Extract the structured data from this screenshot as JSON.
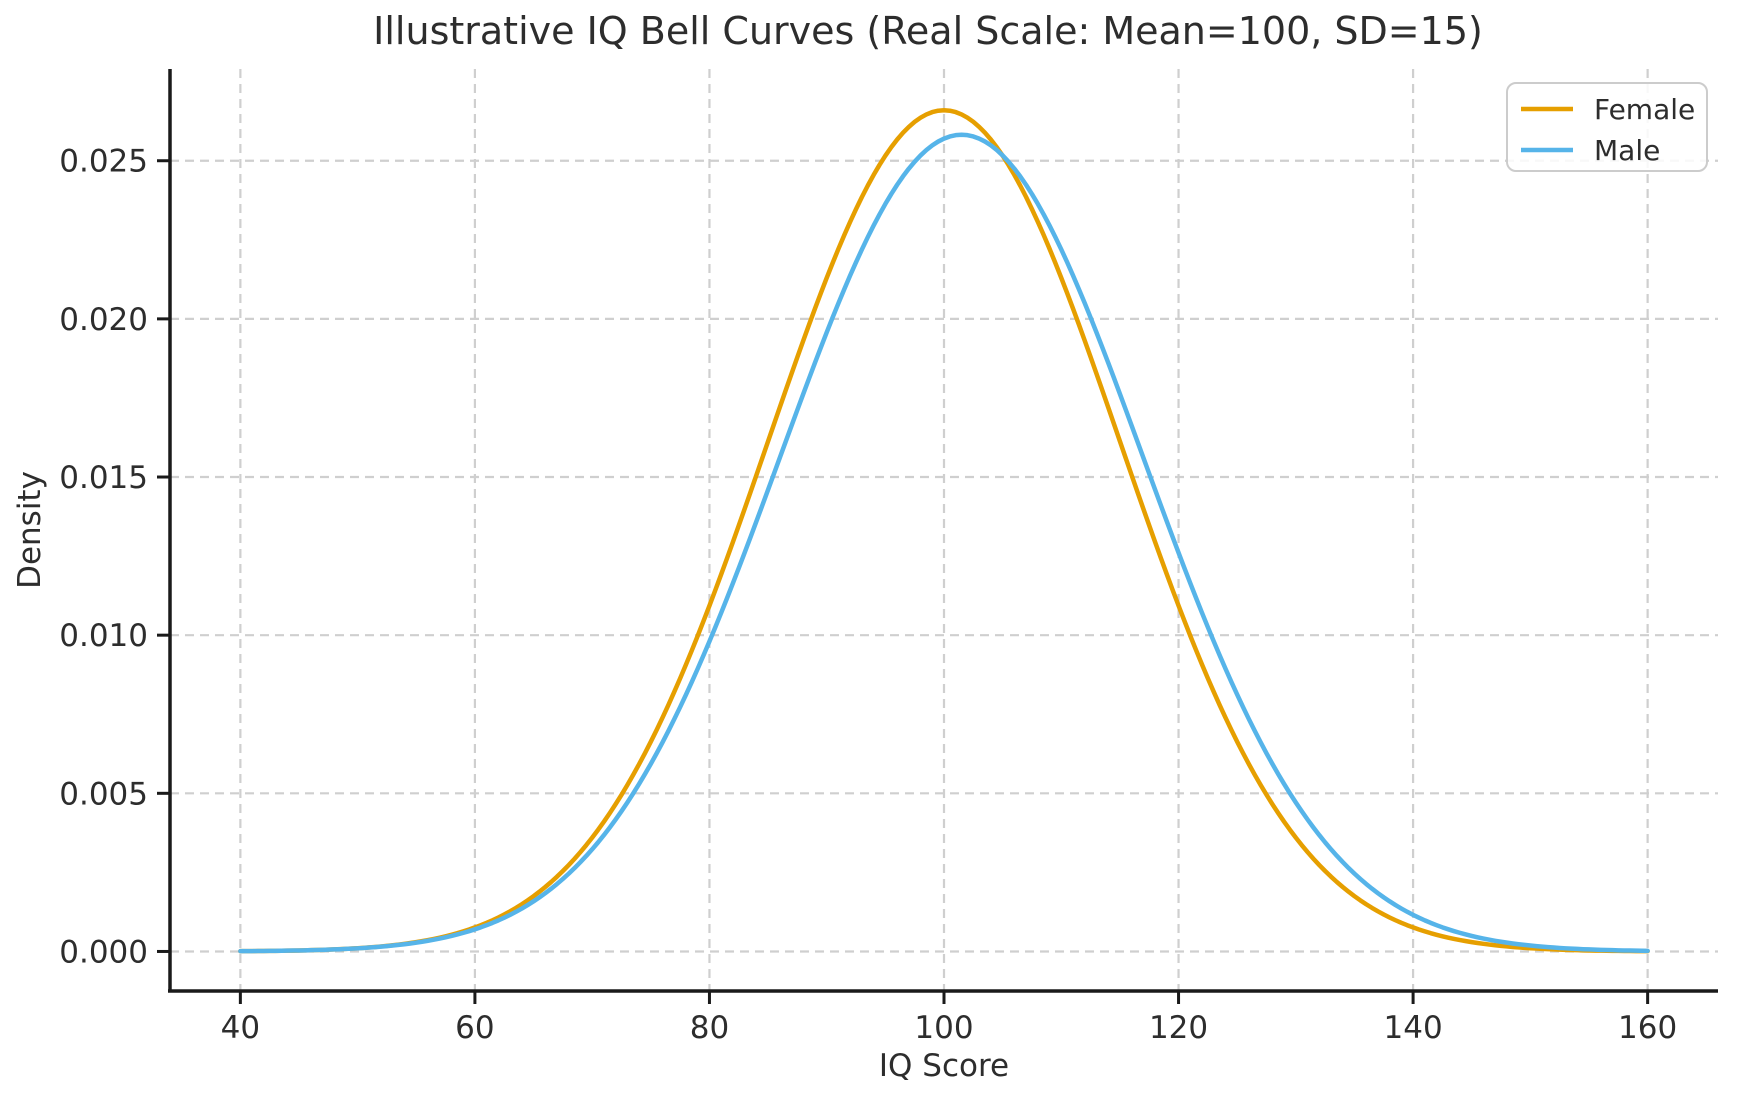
{
  "chart_data": {
    "type": "line",
    "title": "Illustrative IQ Bell Curves (Real Scale: Mean=100, SD=15)",
    "xlabel": "IQ Score",
    "ylabel": "Density",
    "xlim": [
      34,
      166
    ],
    "ylim": [
      -0.00125,
      0.0279
    ],
    "grid": "dashed",
    "grid_color": "#cfcfcf",
    "spine_color": "#1a1a1a",
    "text_color": "#2d2d2d",
    "legend_position": "upper right",
    "x_ticks": [
      40,
      60,
      80,
      100,
      120,
      140,
      160
    ],
    "x_tick_labels": [
      "40",
      "60",
      "80",
      "100",
      "120",
      "140",
      "160"
    ],
    "y_ticks": [
      0,
      0.005,
      0.01,
      0.015,
      0.02,
      0.025
    ],
    "y_tick_labels": [
      "0.000",
      "0.005",
      "0.010",
      "0.015",
      "0.020",
      "0.025"
    ],
    "x_sample": [
      40,
      45,
      50,
      55,
      60,
      65,
      70,
      75,
      80,
      85,
      90,
      95,
      100,
      105,
      110,
      115,
      120,
      125,
      130,
      135,
      140,
      145,
      150,
      155,
      160
    ],
    "series": [
      {
        "name": "Female",
        "color": "#E69F00",
        "distribution": "normal",
        "mean": 100,
        "sd": 15,
        "peak_density": 0.0265962,
        "x_range": [
          40,
          160
        ],
        "values": [
          8.9e-06,
          3.2e-05,
          0.0001028,
          0.0002955,
          0.0007598,
          0.0017482,
          0.0035996,
          0.0066319,
          0.010934,
          0.0161315,
          0.0212966,
          0.025159,
          0.0265962,
          0.025159,
          0.0212966,
          0.0161315,
          0.010934,
          0.0066319,
          0.0035996,
          0.0017482,
          0.0007598,
          0.0002955,
          0.0001028,
          3.2e-05,
          8.9e-06
        ]
      },
      {
        "name": "Male",
        "color": "#56B4E9",
        "distribution": "normal",
        "mean": 101.5,
        "sd": 15.45,
        "peak_density": 0.0258215,
        "x_range": [
          40,
          160
        ],
        "values": [
          9.3e-06,
          3.21e-05,
          9.99e-05,
          0.0002786,
          0.0007002,
          0.0015851,
          0.0032309,
          0.0059317,
          0.0098051,
          0.014598,
          0.0195739,
          0.0236345,
          0.0257001,
          0.0251674,
          0.022195,
          0.0176274,
          0.0126079,
          0.0081211,
          0.0047112,
          0.0024613,
          0.0011581,
          0.0004906,
          0.000187,
          6.43e-05,
          1.99e-05
        ]
      }
    ]
  }
}
